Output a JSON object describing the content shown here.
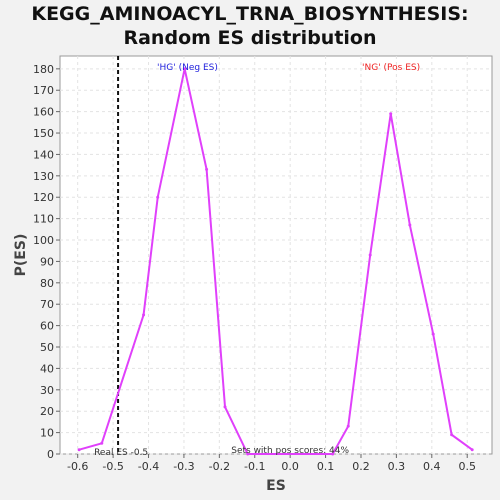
{
  "title_line1": "KEGG_AMINOACYL_TRNA_BIOSYNTHESIS:",
  "title_line2": "Random ES distribution",
  "chart_data": {
    "type": "line",
    "xlabel": "ES",
    "ylabel": "P(ES)",
    "xlim": [
      -0.65,
      0.57
    ],
    "ylim": [
      0,
      186
    ],
    "x_ticks": [
      -0.6,
      -0.5,
      -0.4,
      -0.3,
      -0.2,
      -0.1,
      0.0,
      0.1,
      0.2,
      0.3,
      0.4,
      0.5
    ],
    "y_ticks": [
      0,
      10,
      20,
      30,
      40,
      50,
      60,
      70,
      80,
      90,
      100,
      110,
      120,
      130,
      140,
      150,
      160,
      170,
      180
    ],
    "grid": true,
    "series": [
      {
        "color": "#e040fb",
        "x": [
          -0.596,
          -0.532,
          -0.414,
          -0.374,
          -0.298,
          -0.236,
          -0.184,
          -0.12,
          0.12,
          0.164,
          0.226,
          0.284,
          0.338,
          0.404,
          0.456,
          0.514
        ],
        "y": [
          2,
          5,
          65,
          120,
          180,
          133,
          22,
          0,
          0,
          13,
          93,
          159,
          107,
          56,
          9,
          2
        ]
      }
    ],
    "real_es": -0.486,
    "annotations": {
      "neg_label": "'HG' (Neg ES)",
      "pos_label": "'NG' (Pos ES)",
      "real_es_label": "Real ES -0.5",
      "pos_scores_label": "Sets with pos scores: 44%"
    },
    "colors": {
      "neg": "#2222dd",
      "pos": "#ee2222",
      "curve": "#e040fb",
      "real_es_line": "#111111"
    }
  }
}
